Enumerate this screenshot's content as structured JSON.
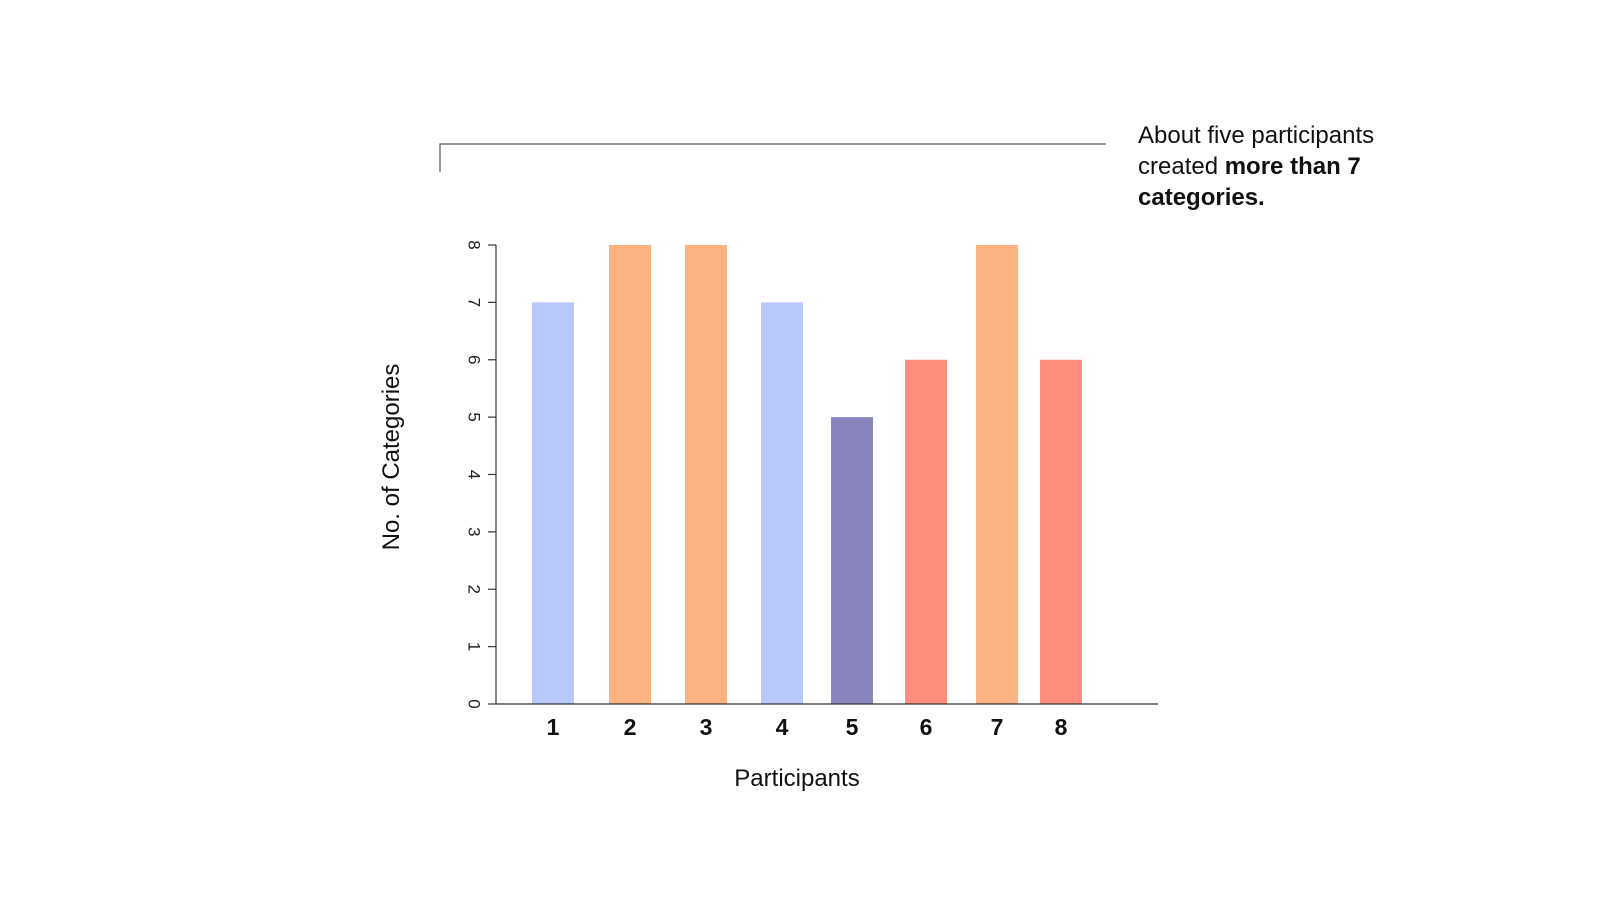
{
  "annotation": {
    "line1": "About five participants",
    "line2_plain": "created ",
    "line2_bold": "more than 7",
    "line3_bold": "categories."
  },
  "chart_data": {
    "type": "bar",
    "title": "",
    "xlabel": "Participants",
    "ylabel": "No. of Categories",
    "categories": [
      "1",
      "2",
      "3",
      "4",
      "5",
      "6",
      "7",
      "8"
    ],
    "values": [
      7,
      8,
      8,
      7,
      5,
      6,
      8,
      6
    ],
    "bar_colors": [
      "#b8c8fb",
      "#fdb282",
      "#fdb282",
      "#b8c8fb",
      "#8884bc",
      "#fe8d7e",
      "#fdb282",
      "#fe8d7e"
    ],
    "ylim": [
      0,
      8
    ],
    "yticks": [
      "0",
      "1",
      "2",
      "3",
      "4",
      "5",
      "6",
      "7",
      "8"
    ],
    "grid": false,
    "legend": "none"
  }
}
